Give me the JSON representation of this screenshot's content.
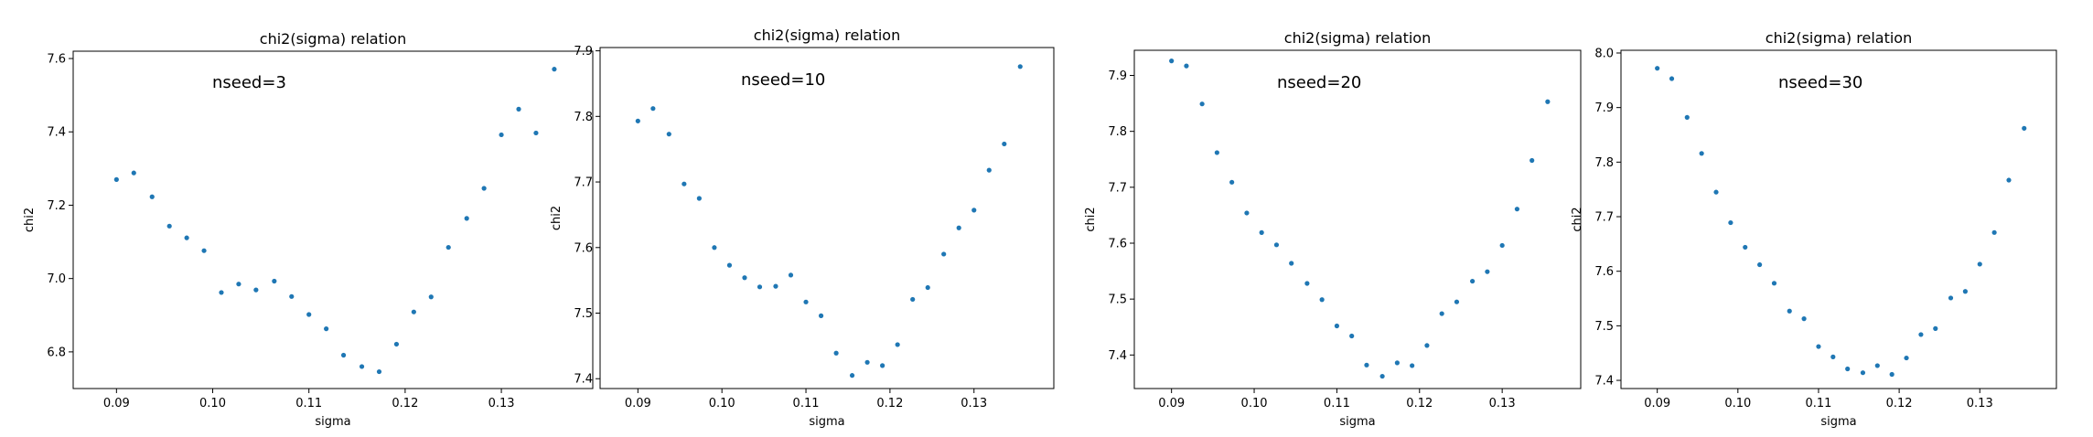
{
  "chart_data": [
    {
      "type": "scatter",
      "title": "chi2(sigma) relation",
      "xlabel": "sigma",
      "ylabel": "chi2",
      "annotation": "nseed=3",
      "xlim": [
        0.0855,
        0.1395
      ],
      "ylim": [
        6.7,
        7.62
      ],
      "xticks": [
        "0.09",
        "0.10",
        "0.11",
        "0.12",
        "0.13"
      ],
      "yticks": [
        "6.8",
        "7.0",
        "7.2",
        "7.4",
        "7.6"
      ],
      "grid": false,
      "color": "#1f77b4",
      "x": [
        0.09,
        0.0918,
        0.0937,
        0.0955,
        0.0973,
        0.0991,
        0.1009,
        0.1027,
        0.1045,
        0.1064,
        0.1082,
        0.11,
        0.1118,
        0.1136,
        0.1155,
        0.1173,
        0.1191,
        0.1209,
        0.1227,
        0.1245,
        0.1264,
        0.1282,
        0.13,
        0.1318,
        0.1336,
        0.1355
      ],
      "y": [
        7.27,
        7.288,
        7.223,
        7.143,
        7.111,
        7.076,
        6.962,
        6.985,
        6.969,
        6.993,
        6.951,
        6.902,
        6.863,
        6.791,
        6.76,
        6.746,
        6.821,
        6.909,
        6.95,
        7.085,
        7.164,
        7.246,
        7.392,
        7.462,
        7.397,
        7.571
      ]
    },
    {
      "type": "scatter",
      "title": "chi2(sigma) relation",
      "xlabel": "sigma",
      "ylabel": "chi2",
      "annotation": "nseed=10",
      "xlim": [
        0.0855,
        0.1395
      ],
      "ylim": [
        7.385,
        7.905
      ],
      "xticks": [
        "0.09",
        "0.10",
        "0.11",
        "0.12",
        "0.13"
      ],
      "yticks": [
        "7.4",
        "7.5",
        "7.6",
        "7.7",
        "7.8",
        "7.9"
      ],
      "grid": false,
      "color": "#1f77b4",
      "x": [
        0.09,
        0.0918,
        0.0937,
        0.0955,
        0.0973,
        0.0991,
        0.1009,
        0.1027,
        0.1045,
        0.1064,
        0.1082,
        0.11,
        0.1118,
        0.1136,
        0.1155,
        0.1173,
        0.1191,
        0.1209,
        0.1227,
        0.1245,
        0.1264,
        0.1282,
        0.13,
        0.1318,
        0.1336,
        0.1355
      ],
      "y": [
        7.793,
        7.812,
        7.773,
        7.697,
        7.675,
        7.6,
        7.573,
        7.554,
        7.54,
        7.541,
        7.558,
        7.517,
        7.496,
        7.439,
        7.405,
        7.425,
        7.42,
        7.452,
        7.521,
        7.539,
        7.59,
        7.63,
        7.657,
        7.718,
        7.758,
        7.876
      ]
    },
    {
      "type": "scatter",
      "title": "chi2(sigma) relation",
      "xlabel": "sigma",
      "ylabel": "chi2",
      "annotation": "nseed=20",
      "xlim": [
        0.0855,
        0.1395
      ],
      "ylim": [
        7.34,
        7.945
      ],
      "xticks": [
        "0.09",
        "0.10",
        "0.11",
        "0.12",
        "0.13"
      ],
      "yticks": [
        "7.4",
        "7.5",
        "7.6",
        "7.7",
        "7.8",
        "7.9"
      ],
      "grid": false,
      "color": "#1f77b4",
      "x": [
        0.09,
        0.0918,
        0.0937,
        0.0955,
        0.0973,
        0.0991,
        0.1009,
        0.1027,
        0.1045,
        0.1064,
        0.1082,
        0.11,
        0.1118,
        0.1136,
        0.1155,
        0.1173,
        0.1191,
        0.1209,
        0.1227,
        0.1245,
        0.1264,
        0.1282,
        0.13,
        0.1318,
        0.1336,
        0.1355
      ],
      "y": [
        7.926,
        7.917,
        7.849,
        7.762,
        7.709,
        7.654,
        7.619,
        7.597,
        7.564,
        7.528,
        7.499,
        7.452,
        7.434,
        7.382,
        7.362,
        7.386,
        7.381,
        7.417,
        7.474,
        7.495,
        7.532,
        7.549,
        7.596,
        7.661,
        7.748,
        7.853
      ]
    },
    {
      "type": "scatter",
      "title": "chi2(sigma) relation",
      "xlabel": "sigma",
      "ylabel": "chi2",
      "annotation": "nseed=30",
      "xlim": [
        0.0855,
        0.1395
      ],
      "ylim": [
        7.385,
        8.005
      ],
      "xticks": [
        "0.09",
        "0.10",
        "0.11",
        "0.12",
        "0.13"
      ],
      "yticks": [
        "7.4",
        "7.5",
        "7.6",
        "7.7",
        "7.8",
        "7.9",
        "8.0"
      ],
      "grid": false,
      "color": "#1f77b4",
      "x": [
        0.09,
        0.0918,
        0.0937,
        0.0955,
        0.0973,
        0.0991,
        0.1009,
        0.1027,
        0.1045,
        0.1064,
        0.1082,
        0.11,
        0.1118,
        0.1136,
        0.1155,
        0.1173,
        0.1191,
        0.1209,
        0.1227,
        0.1245,
        0.1264,
        0.1282,
        0.13,
        0.1318,
        0.1336,
        0.1355
      ],
      "y": [
        7.972,
        7.953,
        7.882,
        7.816,
        7.745,
        7.689,
        7.644,
        7.612,
        7.578,
        7.527,
        7.513,
        7.462,
        7.443,
        7.421,
        7.414,
        7.427,
        7.411,
        7.441,
        7.484,
        7.495,
        7.551,
        7.563,
        7.613,
        7.671,
        7.767,
        7.862
      ]
    }
  ]
}
